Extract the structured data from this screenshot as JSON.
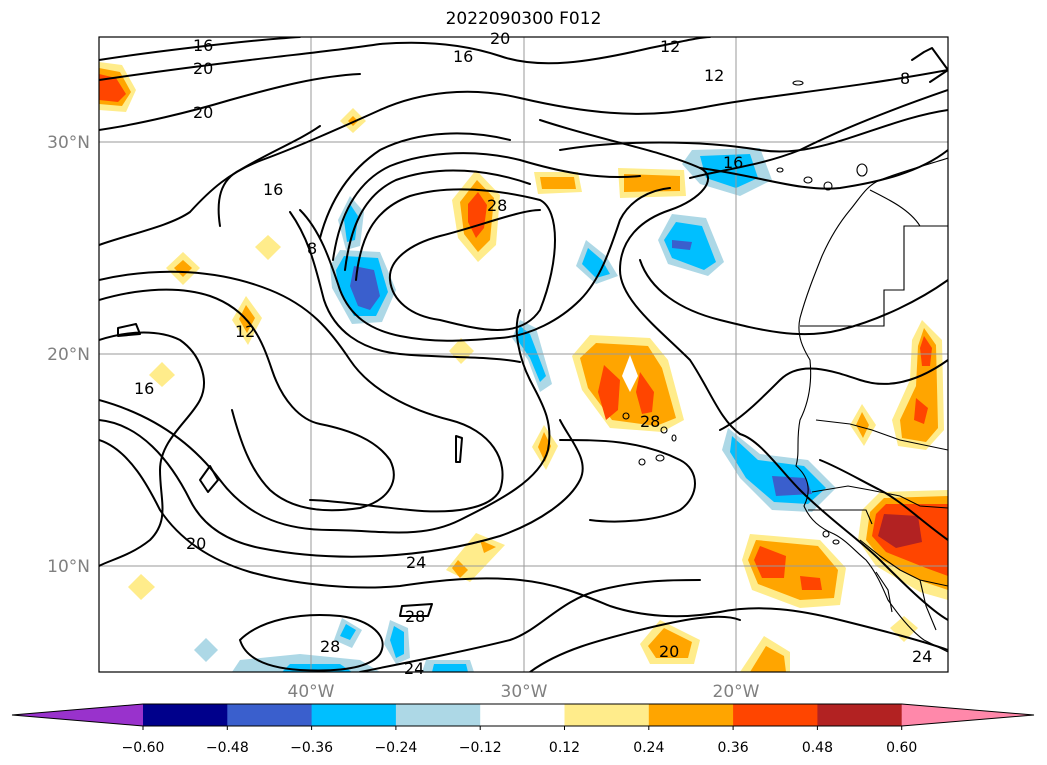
{
  "title": "2022090300 F012",
  "map": {
    "lat_labels": [
      {
        "text": "30°N",
        "lat": 30
      },
      {
        "text": "20°N",
        "lat": 20
      },
      {
        "text": "10°N",
        "lat": 10
      }
    ],
    "lon_labels": [
      {
        "text": "40°W",
        "lon": -40
      },
      {
        "text": "30°W",
        "lon": -30
      },
      {
        "text": "20°W",
        "lon": -20
      }
    ],
    "extent": {
      "lon_min": -50,
      "lon_max": -10,
      "lat_min": 5,
      "lat_max": 35
    },
    "contour_labels": [
      "16",
      "20",
      "20",
      "16",
      "12",
      "12",
      "8",
      "16",
      "8",
      "28",
      "12",
      "16",
      "28",
      "16",
      "20",
      "24",
      "28",
      "28",
      "24",
      "20",
      "24",
      "20"
    ]
  },
  "colorbar": {
    "ticks": [
      "−0.60",
      "−0.48",
      "−0.36",
      "−0.24",
      "−0.12",
      "0.12",
      "0.24",
      "0.36",
      "0.48",
      "0.60"
    ],
    "colors": [
      "#9932cc",
      "#00008b",
      "#3a5fcd",
      "#00bfff",
      "#add8e6",
      "#ffffff",
      "#ffec8b",
      "#ffa500",
      "#ff4500",
      "#b22222",
      "#ff88aa"
    ]
  }
}
